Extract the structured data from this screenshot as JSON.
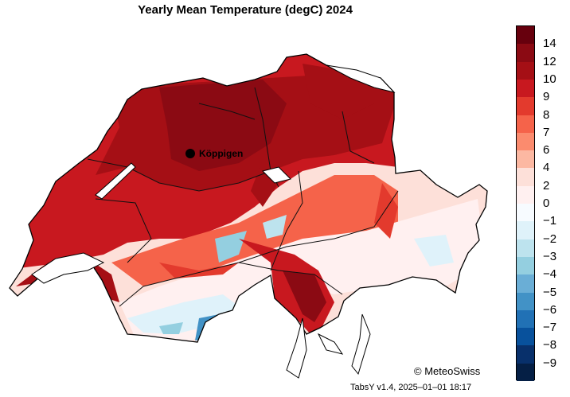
{
  "title": "Yearly Mean Temperature (degC) 2024",
  "station": {
    "name": "Köppigen"
  },
  "legend": {
    "labels": [
      "14",
      "12",
      "10",
      "9",
      "8",
      "7",
      "6",
      "4",
      "2",
      "0",
      "−1",
      "−2",
      "−3",
      "−4",
      "−5",
      "−6",
      "−7",
      "−8",
      "−9"
    ],
    "colors": [
      "#67000d",
      "#8b0a13",
      "#a50f15",
      "#c8181f",
      "#e33a2d",
      "#f5634a",
      "#fb8b6e",
      "#fcb8a2",
      "#fde0d9",
      "#fff0f0",
      "#f7fbff",
      "#dff2fa",
      "#bde3ee",
      "#94cfe0",
      "#6aaed6",
      "#4292c6",
      "#2171b5",
      "#08519c",
      "#08306b",
      "#051f45"
    ]
  },
  "copyright": "© MeteoSwiss",
  "version": "TabsY v1.4, 2025–01–01 18:17"
}
